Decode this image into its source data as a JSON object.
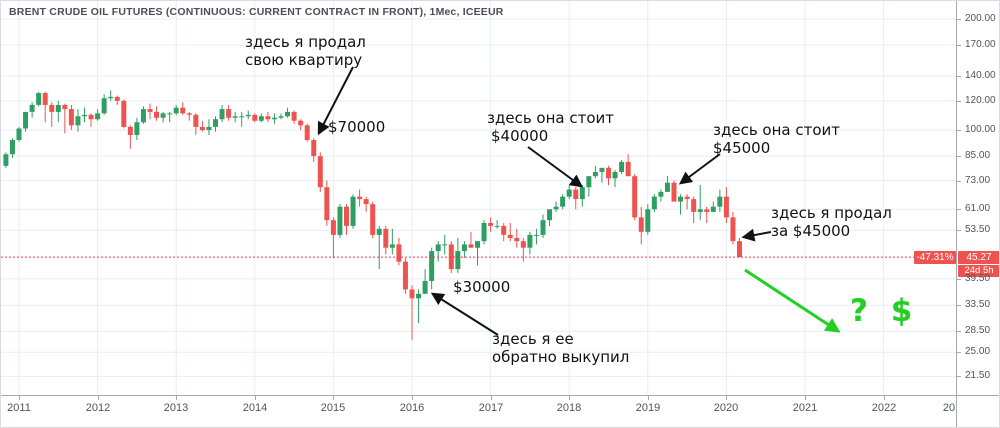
{
  "header": {
    "title": "BRENT CRUDE OIL FUTURES (CONTINUOUS: CURRENT CONTRACT IN FRONT), 1Мес, ICEEUR"
  },
  "price_line": {
    "value": 45.27,
    "price": "45.27",
    "change": "-47.31%",
    "countdown": "24d 5h"
  },
  "annotations": {
    "sold_apartment": {
      "line1": "здесь я продал",
      "line2": "свою  квартиру"
    },
    "price_70000": "$70000",
    "worth_40000": {
      "line1": "здесь она стоит",
      "line2": "$40000"
    },
    "worth_45000": {
      "line1": "здесь она стоит",
      "line2": "$45000"
    },
    "sold_45000": {
      "line1": "здесь я продал",
      "line2": "за $45000"
    },
    "price_30000": "$30000",
    "bought_back": {
      "line1": "здесь я ее",
      "line2": "обратно выкупил"
    },
    "question": "? $"
  },
  "colors": {
    "up_candle": "#2f9e63",
    "down_candle": "#ef5350",
    "price_line": "#f23645",
    "badge": "#ef5350",
    "grid": "#e8edf4",
    "arrow_black": "#121212",
    "arrow_green": "#22cf22",
    "axis_text": "#51545e"
  },
  "chart_data": {
    "type": "candlestick",
    "symbol": "BRENT CRUDE OIL FUTURES (CONTINUOUS: CURRENT CONTRACT IN FRONT)",
    "interval": "1Мес",
    "exchange": "ICEEUR",
    "last_price": 45.27,
    "change_percent": -47.31,
    "y_axis": {
      "scale": "log",
      "ticks": [
        {
          "label": "200.00",
          "value": 200
        },
        {
          "label": "170.00",
          "value": 170
        },
        {
          "label": "140.00",
          "value": 140
        },
        {
          "label": "120.00",
          "value": 120
        },
        {
          "label": "100.00",
          "value": 100
        },
        {
          "label": "85.00",
          "value": 85
        },
        {
          "label": "73.00",
          "value": 73
        },
        {
          "label": "61.00",
          "value": 61
        },
        {
          "label": "53.50",
          "value": 53.5
        },
        {
          "label": "39.50",
          "value": 39.5
        },
        {
          "label": "33.50",
          "value": 33.5
        },
        {
          "label": "28.50",
          "value": 28.5
        },
        {
          "label": "25.00",
          "value": 25
        },
        {
          "label": "21.50",
          "value": 21.5
        }
      ]
    },
    "x_axis": {
      "labels": [
        "2011",
        "2012",
        "2013",
        "2014",
        "2015",
        "2016",
        "2017",
        "2018",
        "2019",
        "2020",
        "2021",
        "2022",
        "20"
      ]
    },
    "series": [
      [
        "2010-11",
        80,
        87,
        79,
        86
      ],
      [
        "2010-12",
        86,
        95,
        84,
        94
      ],
      [
        "2011-01",
        94,
        102,
        93,
        101
      ],
      [
        "2011-02",
        101,
        112,
        99,
        112
      ],
      [
        "2011-03",
        112,
        119,
        108,
        117
      ],
      [
        "2011-04",
        117,
        127,
        116,
        126
      ],
      [
        "2011-05",
        126,
        127,
        105,
        117
      ],
      [
        "2011-06",
        117,
        119,
        102,
        112
      ],
      [
        "2011-07",
        112,
        120,
        105,
        117
      ],
      [
        "2011-08",
        117,
        118,
        98,
        114
      ],
      [
        "2011-09",
        114,
        117,
        100,
        103
      ],
      [
        "2011-10",
        103,
        114,
        99,
        109
      ],
      [
        "2011-11",
        109,
        115,
        105,
        110
      ],
      [
        "2011-12",
        110,
        111,
        102,
        107
      ],
      [
        "2012-01",
        107,
        114,
        106,
        111
      ],
      [
        "2012-02",
        111,
        125,
        110,
        122
      ],
      [
        "2012-03",
        122,
        128,
        120,
        123
      ],
      [
        "2012-04",
        123,
        124,
        117,
        120
      ],
      [
        "2012-05",
        120,
        121,
        101,
        102
      ],
      [
        "2012-06",
        102,
        103,
        89,
        97
      ],
      [
        "2012-07",
        97,
        108,
        94,
        105
      ],
      [
        "2012-08",
        105,
        116,
        104,
        114
      ],
      [
        "2012-09",
        114,
        118,
        107,
        112
      ],
      [
        "2012-10",
        112,
        116,
        106,
        108
      ],
      [
        "2012-11",
        108,
        112,
        105,
        111
      ],
      [
        "2012-12",
        111,
        112,
        105,
        111
      ],
      [
        "2013-01",
        111,
        117,
        110,
        115
      ],
      [
        "2013-02",
        115,
        119,
        110,
        111
      ],
      [
        "2013-03",
        111,
        112,
        106,
        110
      ],
      [
        "2013-04",
        110,
        111,
        97,
        102
      ],
      [
        "2013-05",
        102,
        106,
        99,
        100
      ],
      [
        "2013-06",
        100,
        107,
        97,
        102
      ],
      [
        "2013-07",
        102,
        109,
        99,
        107
      ],
      [
        "2013-08",
        107,
        117,
        105,
        114
      ],
      [
        "2013-09",
        114,
        117,
        106,
        108
      ],
      [
        "2013-10",
        108,
        112,
        105,
        109
      ],
      [
        "2013-11",
        109,
        112,
        102,
        109
      ],
      [
        "2013-12",
        109,
        113,
        107,
        110
      ],
      [
        "2014-01",
        110,
        111,
        105,
        106
      ],
      [
        "2014-02",
        106,
        111,
        105,
        109
      ],
      [
        "2014-03",
        109,
        112,
        105,
        107
      ],
      [
        "2014-04",
        107,
        111,
        104,
        108
      ],
      [
        "2014-05",
        108,
        111,
        107,
        109
      ],
      [
        "2014-06",
        109,
        115,
        108,
        112
      ],
      [
        "2014-07",
        112,
        113,
        104,
        106
      ],
      [
        "2014-08",
        106,
        107,
        100,
        103
      ],
      [
        "2014-09",
        103,
        104,
        93,
        94
      ],
      [
        "2014-10",
        94,
        95,
        82,
        85
      ],
      [
        "2014-11",
        85,
        87,
        68,
        70
      ],
      [
        "2014-12",
        70,
        73,
        55,
        57
      ],
      [
        "2015-01",
        57,
        58,
        45,
        52
      ],
      [
        "2015-02",
        52,
        63,
        51,
        62
      ],
      [
        "2015-03",
        62,
        63,
        52,
        55
      ],
      [
        "2015-04",
        55,
        67,
        54,
        66
      ],
      [
        "2015-05",
        66,
        69,
        62,
        65
      ],
      [
        "2015-06",
        65,
        66,
        60,
        63
      ],
      [
        "2015-07",
        63,
        64,
        51,
        52
      ],
      [
        "2015-08",
        52,
        55,
        42,
        54
      ],
      [
        "2015-09",
        54,
        55,
        46,
        48
      ],
      [
        "2015-10",
        48,
        54,
        46,
        49
      ],
      [
        "2015-11",
        49,
        51,
        43,
        44
      ],
      [
        "2015-12",
        44,
        45,
        36,
        37
      ],
      [
        "2016-01",
        37,
        38,
        27,
        35
      ],
      [
        "2016-02",
        35,
        37,
        30,
        36
      ],
      [
        "2016-03",
        36,
        42,
        36,
        39
      ],
      [
        "2016-04",
        39,
        48,
        37,
        47
      ],
      [
        "2016-05",
        47,
        50,
        44,
        49
      ],
      [
        "2016-06",
        49,
        52,
        46,
        49
      ],
      [
        "2016-07",
        49,
        50,
        41,
        42
      ],
      [
        "2016-08",
        42,
        51,
        41,
        47
      ],
      [
        "2016-09",
        47,
        50,
        45,
        49
      ],
      [
        "2016-10",
        49,
        53,
        48,
        48
      ],
      [
        "2016-11",
        48,
        50,
        43,
        50
      ],
      [
        "2016-12",
        50,
        57,
        49,
        56
      ],
      [
        "2017-01",
        56,
        58,
        53,
        55
      ],
      [
        "2017-02",
        55,
        57,
        54,
        55
      ],
      [
        "2017-03",
        55,
        56,
        50,
        52
      ],
      [
        "2017-04",
        52,
        56,
        50,
        51
      ],
      [
        "2017-05",
        51,
        54,
        48,
        50
      ],
      [
        "2017-06",
        50,
        51,
        44,
        48
      ],
      [
        "2017-07",
        48,
        53,
        46,
        52
      ],
      [
        "2017-08",
        52,
        54,
        49,
        52
      ],
      [
        "2017-09",
        52,
        59,
        51,
        57
      ],
      [
        "2017-10",
        57,
        61,
        55,
        61
      ],
      [
        "2017-11",
        61,
        64,
        60,
        62
      ],
      [
        "2017-12",
        62,
        67,
        61,
        66
      ],
      [
        "2018-01",
        66,
        71,
        65,
        69
      ],
      [
        "2018-02",
        69,
        70,
        61,
        65
      ],
      [
        "2018-03",
        65,
        71,
        62,
        70
      ],
      [
        "2018-04",
        70,
        75,
        66,
        75
      ],
      [
        "2018-05",
        75,
        80,
        74,
        77
      ],
      [
        "2018-06",
        77,
        79,
        72,
        79
      ],
      [
        "2018-07",
        79,
        80,
        71,
        74
      ],
      [
        "2018-08",
        74,
        78,
        70,
        77
      ],
      [
        "2018-09",
        77,
        83,
        76,
        82
      ],
      [
        "2018-10",
        82,
        86,
        75,
        75
      ],
      [
        "2018-11",
        75,
        76,
        57,
        58
      ],
      [
        "2018-12",
        58,
        62,
        49,
        53
      ],
      [
        "2019-01",
        53,
        63,
        52,
        61
      ],
      [
        "2019-02",
        61,
        67,
        60,
        66
      ],
      [
        "2019-03",
        66,
        69,
        64,
        68
      ],
      [
        "2019-04",
        68,
        75,
        68,
        72
      ],
      [
        "2019-05",
        72,
        73,
        64,
        64
      ],
      [
        "2019-06",
        64,
        67,
        59,
        66
      ],
      [
        "2019-07",
        66,
        67,
        61,
        65
      ],
      [
        "2019-08",
        65,
        66,
        56,
        60
      ],
      [
        "2019-09",
        60,
        71,
        57,
        61
      ],
      [
        "2019-10",
        61,
        62,
        56,
        60
      ],
      [
        "2019-11",
        60,
        64,
        60,
        62
      ],
      [
        "2019-12",
        62,
        69,
        60,
        66
      ],
      [
        "2020-01",
        66,
        70,
        56,
        58
      ],
      [
        "2020-02",
        58,
        60,
        49,
        50
      ],
      [
        "2020-03",
        50,
        51,
        45.27,
        45.27
      ]
    ]
  }
}
